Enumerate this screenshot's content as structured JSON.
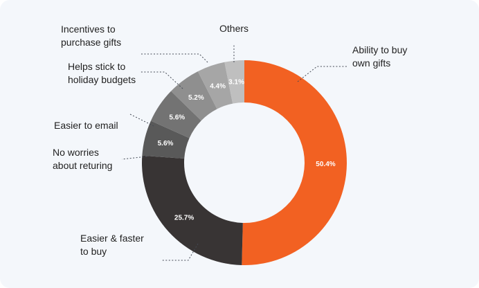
{
  "chart_data": {
    "type": "pie",
    "donut": true,
    "title": "",
    "slices": [
      {
        "label": [
          "Ability to buy",
          "own gifts"
        ],
        "value": 50.4,
        "value_label": "50.4%",
        "color": "#f26122"
      },
      {
        "label": [
          "Easier & faster",
          "to buy"
        ],
        "value": 25.7,
        "value_label": "25.7%",
        "color": "#383434"
      },
      {
        "label": [
          "No worries",
          "about returing"
        ],
        "value": 5.6,
        "value_label": "5.6%",
        "color": "#595959"
      },
      {
        "label": [
          "Easier to email"
        ],
        "value": 5.6,
        "value_label": "5.6%",
        "color": "#737373"
      },
      {
        "label": [
          "Helps stick to",
          "holiday budgets"
        ],
        "value": 5.2,
        "value_label": "5.2%",
        "color": "#8f8f8f"
      },
      {
        "label": [
          "Incentives to",
          "purchase gifts"
        ],
        "value": 4.4,
        "value_label": "4.4%",
        "color": "#a6a6a6"
      },
      {
        "label": [
          "Others"
        ],
        "value": 3.1,
        "value_label": "3.1%",
        "color": "#bfbfbf"
      }
    ]
  }
}
